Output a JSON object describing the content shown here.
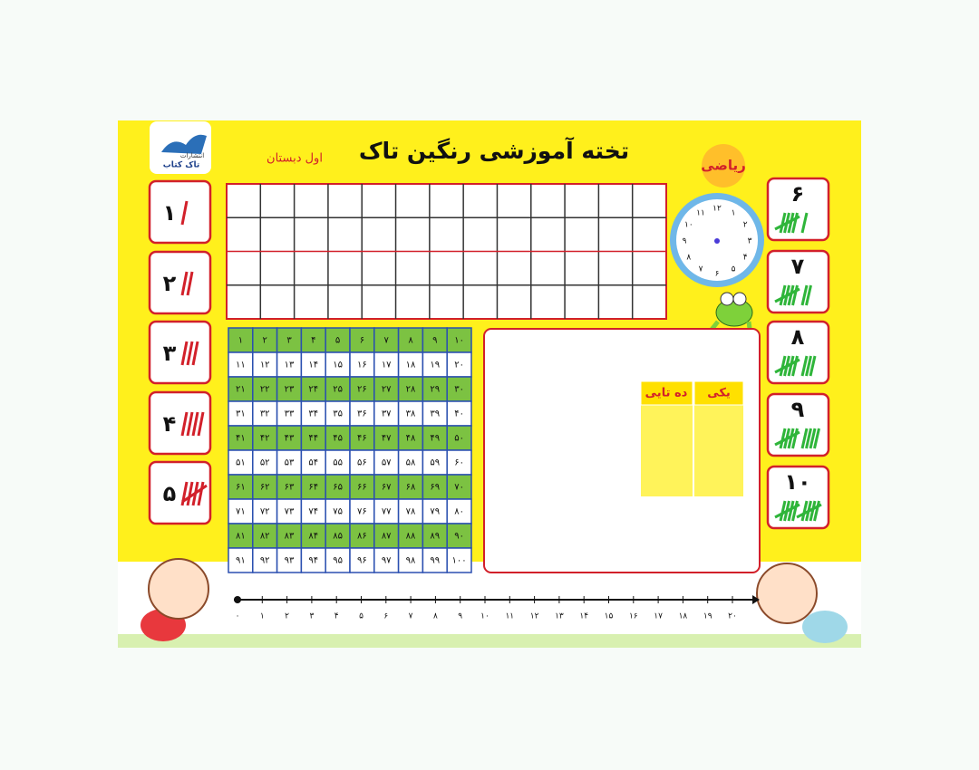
{
  "header": {
    "title": "تخته آموزشی رنگین تاک",
    "grade": "اول دبستان",
    "subject": "ریاضی",
    "logo": {
      "publisher": "انتشارات",
      "brand": "تاک کتاب"
    }
  },
  "tally_cards": [
    "۱",
    "۲",
    "۳",
    "۴",
    "۵",
    "۶",
    "۷",
    "۸",
    "۹",
    "۱۰"
  ],
  "hundred_chart": {
    "rows": [
      [
        "۱",
        "۲",
        "۳",
        "۴",
        "۵",
        "۶",
        "۷",
        "۸",
        "۹",
        "۱۰"
      ],
      [
        "۱۱",
        "۱۲",
        "۱۳",
        "۱۴",
        "۱۵",
        "۱۶",
        "۱۷",
        "۱۸",
        "۱۹",
        "۲۰"
      ],
      [
        "۲۱",
        "۲۲",
        "۲۳",
        "۲۴",
        "۲۵",
        "۲۶",
        "۲۷",
        "۲۸",
        "۲۹",
        "۳۰"
      ],
      [
        "۳۱",
        "۳۲",
        "۳۳",
        "۳۴",
        "۳۵",
        "۳۶",
        "۳۷",
        "۳۸",
        "۳۹",
        "۴۰"
      ],
      [
        "۴۱",
        "۴۲",
        "۴۳",
        "۴۴",
        "۴۵",
        "۴۶",
        "۴۷",
        "۴۸",
        "۴۹",
        "۵۰"
      ],
      [
        "۵۱",
        "۵۲",
        "۵۳",
        "۵۴",
        "۵۵",
        "۵۶",
        "۵۷",
        "۵۸",
        "۵۹",
        "۶۰"
      ],
      [
        "۶۱",
        "۶۲",
        "۶۳",
        "۶۴",
        "۶۵",
        "۶۶",
        "۶۷",
        "۶۸",
        "۶۹",
        "۷۰"
      ],
      [
        "۷۱",
        "۷۲",
        "۷۳",
        "۷۴",
        "۷۵",
        "۷۶",
        "۷۷",
        "۷۸",
        "۷۹",
        "۸۰"
      ],
      [
        "۸۱",
        "۸۲",
        "۸۳",
        "۸۴",
        "۸۵",
        "۸۶",
        "۸۷",
        "۸۸",
        "۸۹",
        "۹۰"
      ],
      [
        "۹۱",
        "۹۲",
        "۹۳",
        "۹۴",
        "۹۵",
        "۹۶",
        "۹۷",
        "۹۸",
        "۹۹",
        "۱۰۰"
      ]
    ]
  },
  "place_value": {
    "tens": "ده تایی",
    "ones": "یکی"
  },
  "clock": {
    "numbers": [
      "۱",
      "۲",
      "۳",
      "۴",
      "۵",
      "۶",
      "۷",
      "۸",
      "۹",
      "۱۰",
      "۱۱",
      "۱۲"
    ]
  },
  "number_line": {
    "labels": [
      "۰",
      "۱",
      "۲",
      "۳",
      "۴",
      "۵",
      "۶",
      "۷",
      "۸",
      "۹",
      "۱۰",
      "۱۱",
      "۱۲",
      "۱۳",
      "۱۴",
      "۱۵",
      "۱۶",
      "۱۷",
      "۱۸",
      "۱۹",
      "۲۰"
    ]
  }
}
